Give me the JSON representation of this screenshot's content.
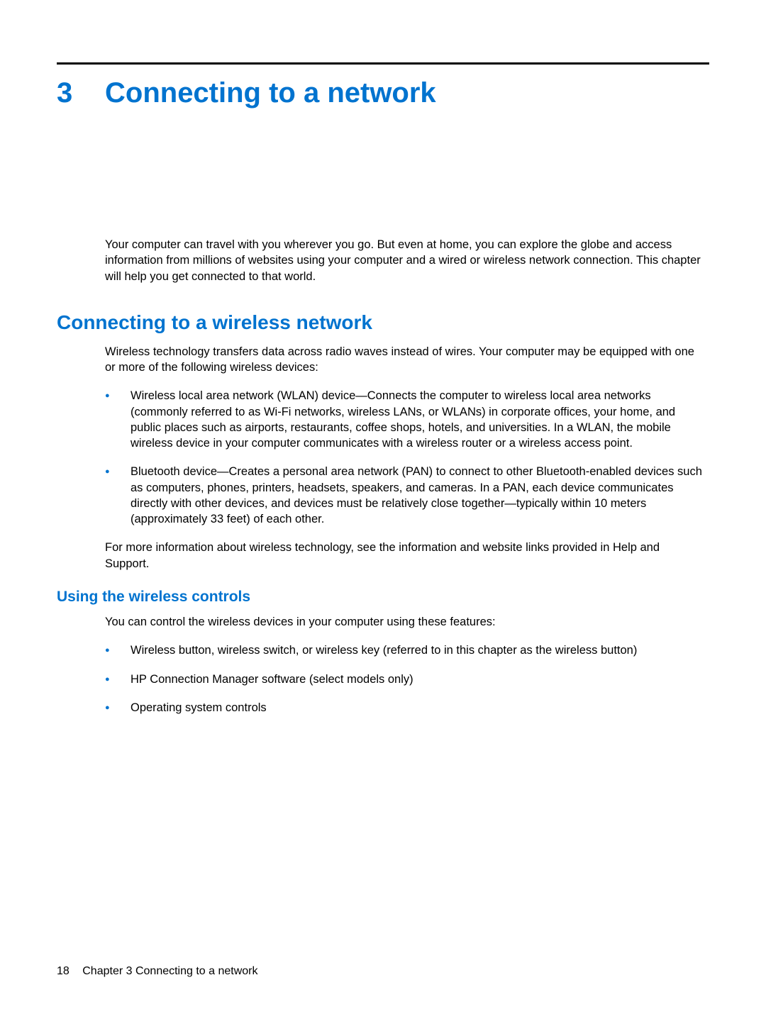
{
  "chapter": {
    "number": "3",
    "title": "Connecting to a network"
  },
  "intro": "Your computer can travel with you wherever you go. But even at home, you can explore the globe and access information from millions of websites using your computer and a wired or wireless network connection. This chapter will help you get connected to that world.",
  "section1": {
    "heading": "Connecting to a wireless network",
    "lead": "Wireless technology transfers data across radio waves instead of wires. Your computer may be equipped with one or more of the following wireless devices:",
    "bullets": [
      "Wireless local area network (WLAN) device—Connects the computer to wireless local area networks (commonly referred to as Wi-Fi networks, wireless LANs, or WLANs) in corporate offices, your home, and public places such as airports, restaurants, coffee shops, hotels, and universities. In a WLAN, the mobile wireless device in your computer communicates with a wireless router or a wireless access point.",
      "Bluetooth device—Creates a personal area network (PAN) to connect to other Bluetooth-enabled devices such as computers, phones, printers, headsets, speakers, and cameras. In a PAN, each device communicates directly with other devices, and devices must be relatively close together—typically within 10 meters (approximately 33 feet) of each other."
    ],
    "after": "For more information about wireless technology, see the information and website links provided in Help and Support."
  },
  "section2": {
    "heading": "Using the wireless controls",
    "lead": "You can control the wireless devices in your computer using these features:",
    "bullets": [
      "Wireless button, wireless switch, or wireless key (referred to in this chapter as the wireless button)",
      "HP Connection Manager software (select models only)",
      "Operating system controls"
    ]
  },
  "footer": {
    "page_number": "18",
    "chapter_label": "Chapter 3   Connecting to a network"
  },
  "colors": {
    "accent": "#0073cf",
    "text": "#000000",
    "background": "#ffffff"
  }
}
